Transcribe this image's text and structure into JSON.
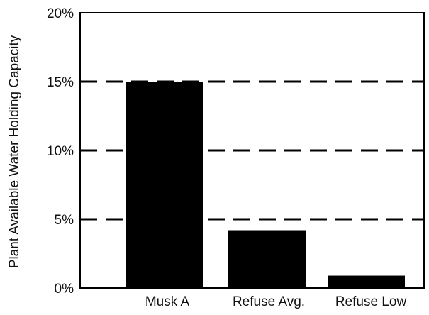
{
  "chart_data": {
    "type": "bar",
    "title": "",
    "xlabel": "",
    "ylabel": "Plant Available Water Holding Capacity",
    "categories": [
      "Musk A",
      "Refuse Avg.",
      "Refuse Low"
    ],
    "values": [
      15,
      4.2,
      0.9
    ],
    "ylim": [
      0,
      20
    ],
    "yticks": [
      0,
      5,
      10,
      15,
      20
    ],
    "ytick_labels": [
      "0%",
      "5%",
      "10%",
      "15%",
      "20%"
    ],
    "grid": "dashed horizontal lines at 5%, 10%, 15%",
    "legend": "none",
    "colors": {
      "bars": "#000000",
      "axes": "#000000",
      "grid": "#000000",
      "background": "#ffffff"
    }
  }
}
